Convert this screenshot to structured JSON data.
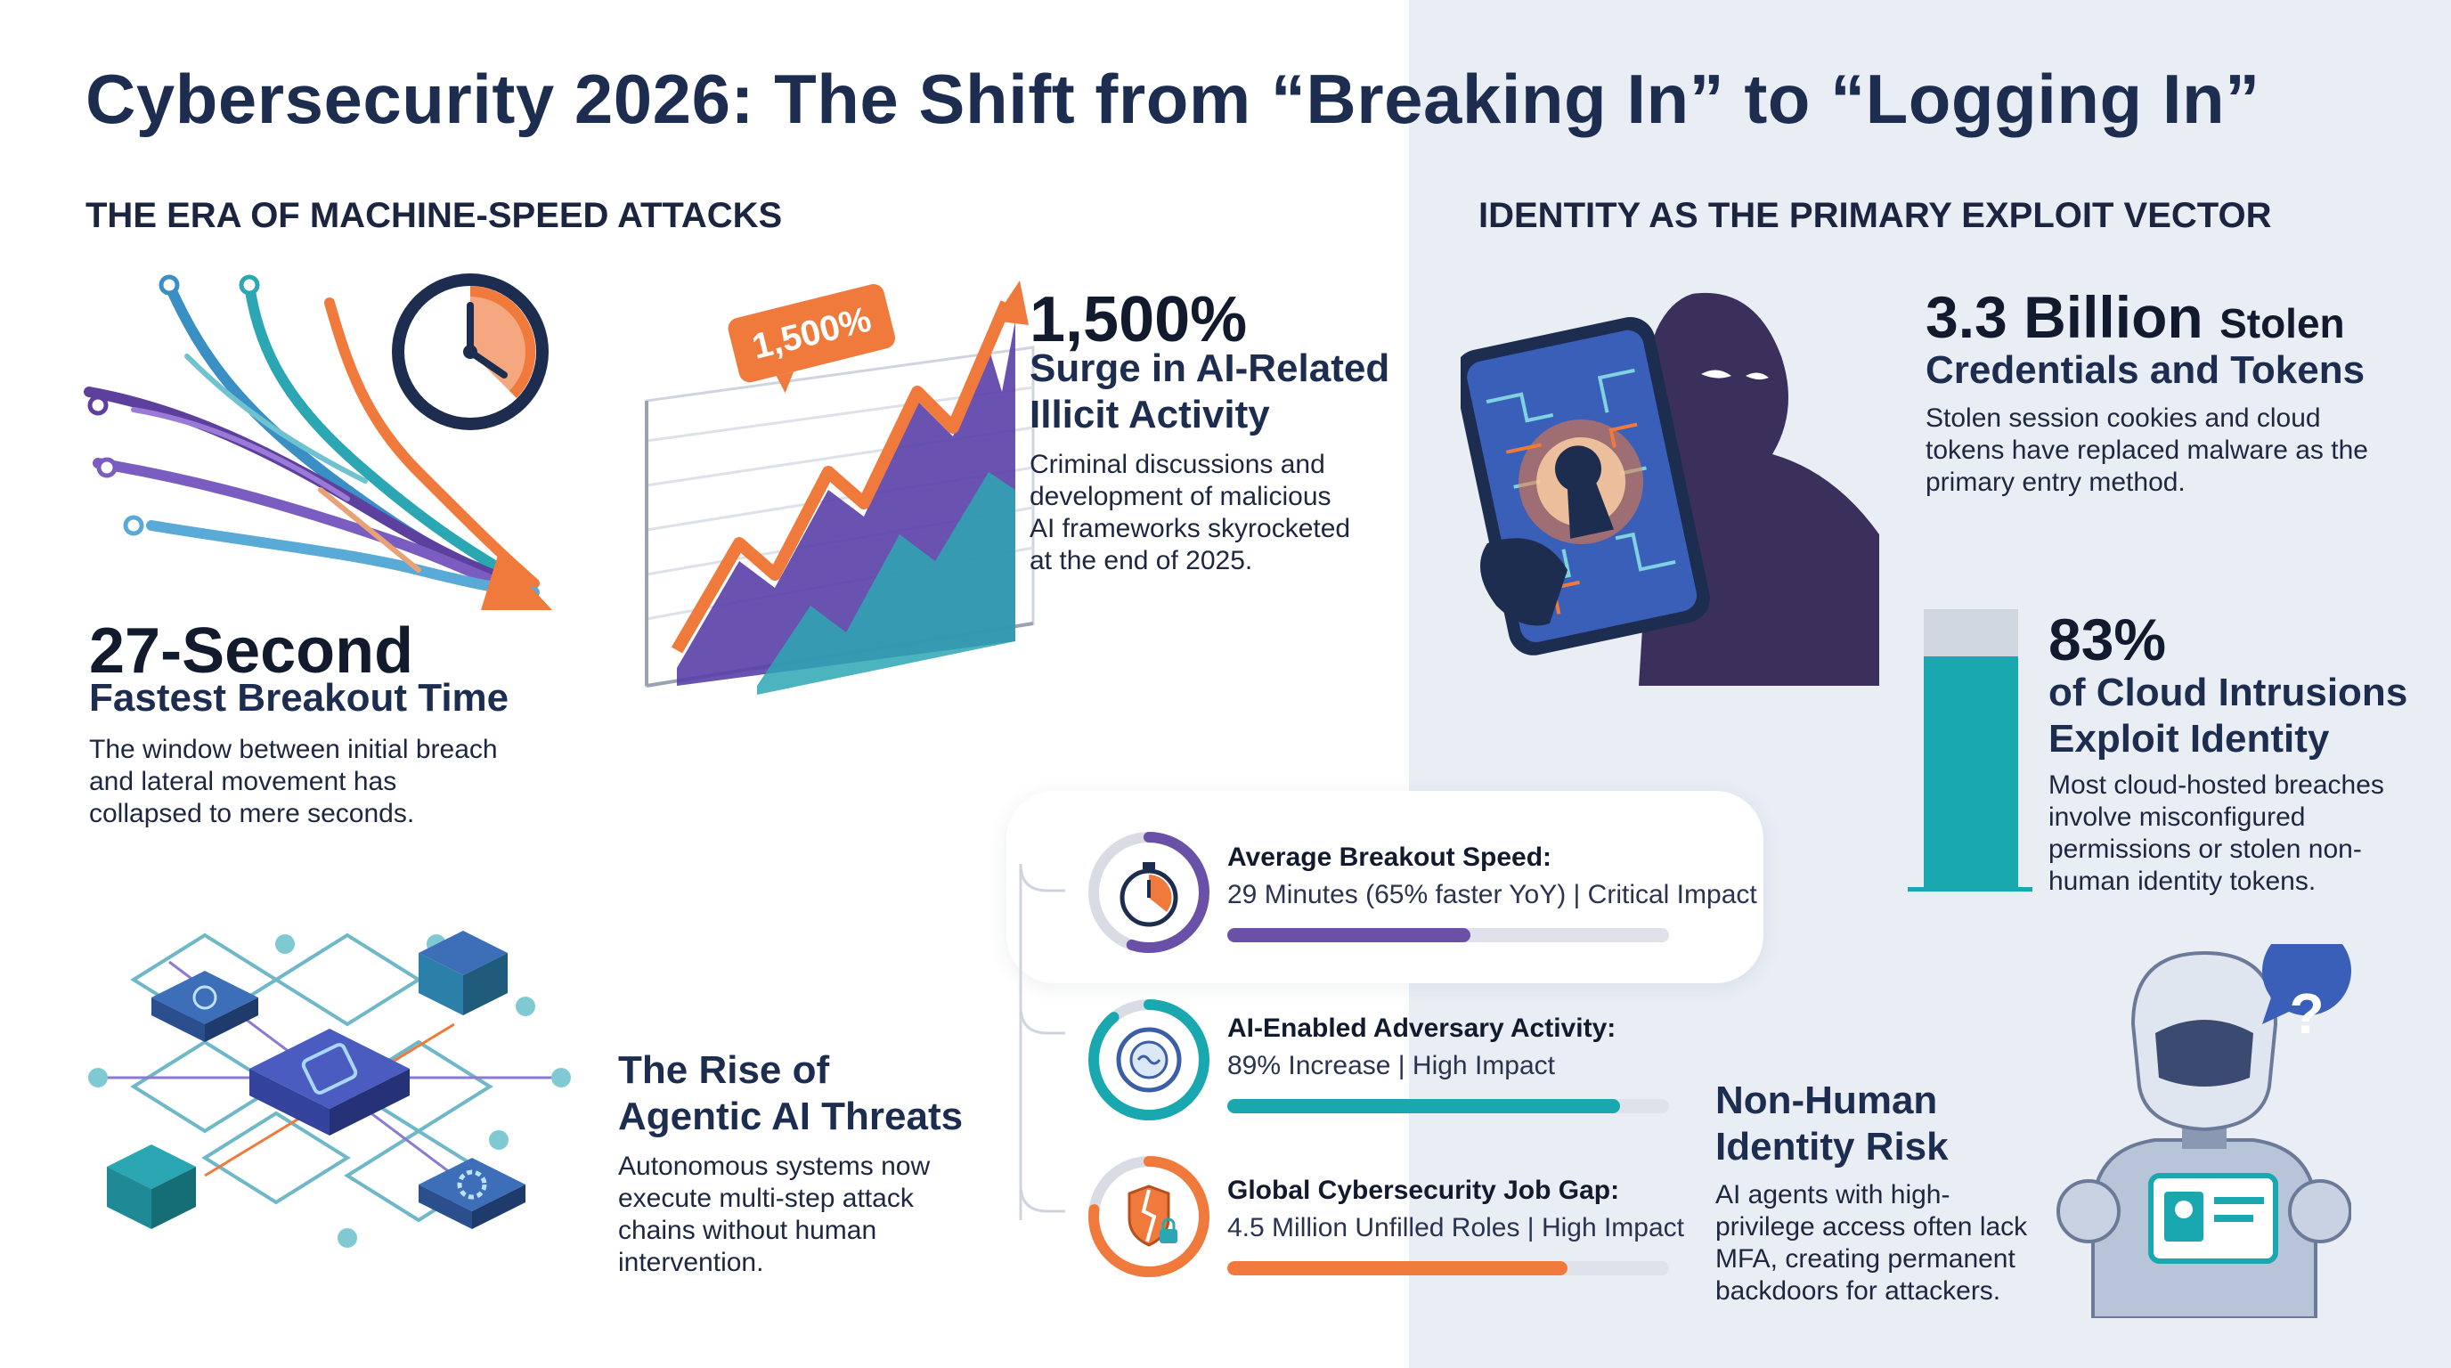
{
  "title": "Cybersecurity 2026: The Shift from “Breaking In” to “Logging In”",
  "left_heading": "THE ERA OF MACHINE-SPEED ATTACKS",
  "right_heading": "IDENTITY AS THE PRIMARY EXPLOIT VECTOR",
  "breakout": {
    "stat": "27-Second",
    "subtitle": "Fastest Breakout Time",
    "body": [
      "The window between initial breach",
      "and lateral movement has",
      "collapsed to mere seconds."
    ]
  },
  "surge": {
    "badge": "1,500%",
    "stat": "1,500%",
    "subtitle": [
      "Surge in AI-Related",
      "Illicit Activity"
    ],
    "body": [
      "Criminal discussions and",
      "development of malicious",
      "AI frameworks skyrocketed",
      "at the end of 2025."
    ]
  },
  "agentic": {
    "subtitle": [
      "The Rise of",
      "Agentic AI Threats"
    ],
    "body": [
      "Autonomous systems now",
      "execute multi-step attack",
      "chains without human",
      "intervention."
    ]
  },
  "metrics": [
    {
      "label": "Average Breakout Speed:",
      "value": "29 Minutes (65% faster YoY) | Critical Impact",
      "fill": 0.55,
      "color": "#6a50a7",
      "icon": "stopwatch-icon"
    },
    {
      "label": "AI-Enabled Adversary Activity:",
      "value": "89% Increase | High Impact",
      "fill": 0.89,
      "color": "#1aa8b0",
      "icon": "ai-brain-icon"
    },
    {
      "label": "Global Cybersecurity Job Gap:",
      "value": "4.5 Million Unfilled Roles | High Impact",
      "fill": 0.77,
      "color": "#f07a3c",
      "icon": "broken-shield-lock-icon"
    }
  ],
  "credentials": {
    "stat_bold": "3.3 Billion",
    "stat_light": "Stolen",
    "subtitle": "Credentials and Tokens",
    "body": [
      "Stolen session cookies and cloud",
      "tokens have replaced malware as the",
      "primary entry method."
    ]
  },
  "cloud": {
    "stat": "83%",
    "fill": 0.83,
    "subtitle": [
      "of Cloud Intrusions",
      "Exploit Identity"
    ],
    "body": [
      "Most cloud-hosted breaches",
      "involve misconfigured",
      "permissions or stolen non-",
      "human identity tokens."
    ]
  },
  "nonhuman": {
    "subtitle": [
      "Non-Human",
      "Identity Risk"
    ],
    "body": [
      "AI agents with high-",
      "privilege access often lack",
      "MFA, creating permanent",
      "backdoors for attackers."
    ]
  },
  "colors": {
    "navy": "#1d2d50",
    "teal": "#1aa8b0",
    "orange": "#f07a3c",
    "purple": "#6a50a7",
    "panel": "#e9eef5"
  }
}
